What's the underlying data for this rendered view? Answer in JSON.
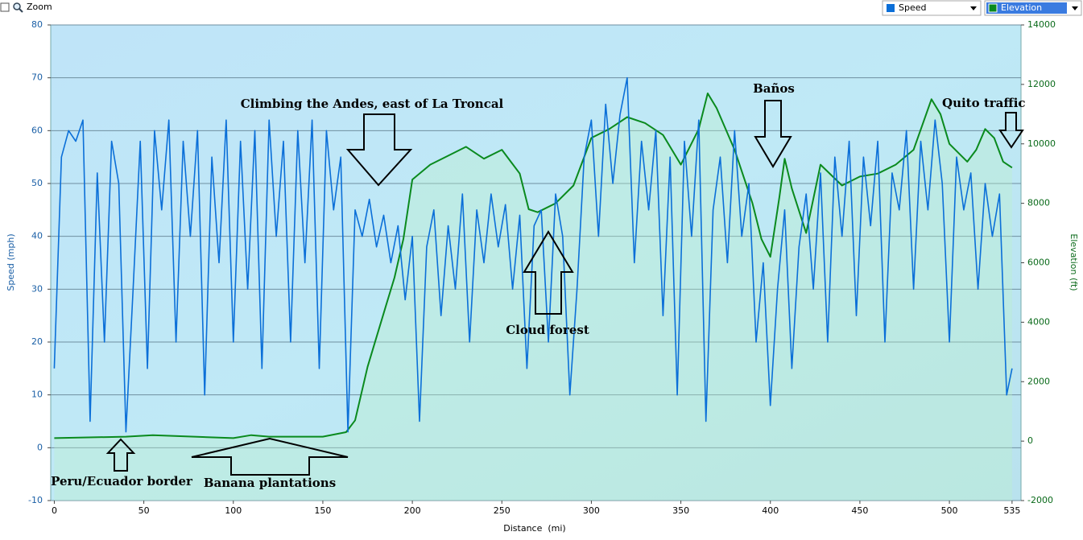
{
  "toolbar": {
    "zoom_label": "Zoom"
  },
  "chart_data": {
    "type": "line",
    "xlabel": "Distance  (mi)",
    "ylabel": "Speed (mph)",
    "y2label": "Elevation (ft)",
    "xlim": [
      -2,
      540
    ],
    "xticks": [
      0,
      50,
      100,
      150,
      200,
      250,
      300,
      350,
      400,
      450,
      500,
      535
    ],
    "ylim": [
      -10,
      80
    ],
    "yticks": [
      -10,
      0,
      10,
      20,
      30,
      40,
      50,
      60,
      70,
      80
    ],
    "y2lim": [
      -2000,
      14000
    ],
    "y2ticks": [
      -2000,
      0,
      2000,
      4000,
      6000,
      8000,
      10000,
      12000,
      14000
    ],
    "grid": true,
    "series": [
      {
        "name": "Speed",
        "color": "#0b6fd8",
        "x": [
          0,
          4,
          8,
          12,
          16,
          20,
          24,
          28,
          32,
          36,
          40,
          44,
          48,
          52,
          56,
          60,
          64,
          68,
          72,
          76,
          80,
          84,
          88,
          92,
          96,
          100,
          104,
          108,
          112,
          116,
          120,
          124,
          128,
          132,
          136,
          140,
          144,
          148,
          152,
          156,
          160,
          164,
          168,
          172,
          176,
          180,
          184,
          188,
          192,
          196,
          200,
          204,
          208,
          212,
          216,
          220,
          224,
          228,
          232,
          236,
          240,
          244,
          248,
          252,
          256,
          260,
          264,
          268,
          272,
          276,
          280,
          284,
          288,
          292,
          296,
          300,
          304,
          308,
          312,
          316,
          320,
          324,
          328,
          332,
          336,
          340,
          344,
          348,
          352,
          356,
          360,
          364,
          368,
          372,
          376,
          380,
          384,
          388,
          392,
          396,
          400,
          404,
          408,
          412,
          416,
          420,
          424,
          428,
          432,
          436,
          440,
          444,
          448,
          452,
          456,
          460,
          464,
          468,
          472,
          476,
          480,
          484,
          488,
          492,
          496,
          500,
          504,
          508,
          512,
          516,
          520,
          524,
          528,
          532,
          535
        ],
        "values": [
          15,
          55,
          60,
          58,
          62,
          5,
          52,
          20,
          58,
          50,
          3,
          30,
          58,
          15,
          60,
          45,
          62,
          20,
          58,
          40,
          60,
          10,
          55,
          35,
          62,
          20,
          58,
          30,
          60,
          15,
          62,
          40,
          58,
          20,
          60,
          35,
          62,
          15,
          60,
          45,
          55,
          3,
          45,
          40,
          47,
          38,
          44,
          35,
          42,
          28,
          40,
          5,
          38,
          45,
          25,
          42,
          30,
          48,
          20,
          45,
          35,
          48,
          38,
          46,
          30,
          44,
          15,
          42,
          45,
          20,
          48,
          40,
          10,
          30,
          55,
          62,
          40,
          65,
          50,
          63,
          70,
          35,
          58,
          45,
          60,
          25,
          55,
          10,
          58,
          40,
          62,
          5,
          45,
          55,
          35,
          60,
          40,
          50,
          20,
          35,
          8,
          30,
          45,
          15,
          38,
          48,
          30,
          52,
          20,
          55,
          40,
          58,
          25,
          55,
          42,
          58,
          20,
          52,
          45,
          60,
          30,
          58,
          45,
          62,
          50,
          20,
          55,
          45,
          52,
          30,
          50,
          40,
          48,
          10,
          15
        ]
      },
      {
        "name": "Elevation",
        "color": "#0a8a1e",
        "axis": "y2",
        "x": [
          0,
          40,
          55,
          100,
          110,
          120,
          150,
          163,
          168,
          175,
          180,
          185,
          190,
          195,
          200,
          210,
          220,
          230,
          240,
          250,
          260,
          265,
          270,
          280,
          290,
          300,
          310,
          320,
          330,
          340,
          350,
          360,
          365,
          370,
          380,
          390,
          395,
          400,
          405,
          408,
          412,
          420,
          428,
          440,
          450,
          460,
          470,
          480,
          490,
          495,
          500,
          510,
          515,
          520,
          525,
          530,
          535
        ],
        "values": [
          100,
          150,
          200,
          100,
          200,
          150,
          150,
          300,
          700,
          2500,
          3500,
          4500,
          5500,
          6800,
          8800,
          9300,
          9600,
          9900,
          9500,
          9800,
          9000,
          7800,
          7700,
          8000,
          8600,
          10200,
          10500,
          10900,
          10700,
          10300,
          9300,
          10500,
          11700,
          11200,
          9800,
          8000,
          6800,
          6200,
          8200,
          9500,
          8500,
          7000,
          9300,
          8600,
          8900,
          9000,
          9300,
          9800,
          11500,
          11000,
          10000,
          9400,
          9800,
          10500,
          10200,
          9400,
          9200
        ]
      }
    ],
    "annotations": [
      "Climbing the Andes, east of La Troncal",
      "Baños",
      "Quito traffic",
      "Cloud forest",
      "Peru/Ecuador border",
      "Banana plantations"
    ]
  }
}
